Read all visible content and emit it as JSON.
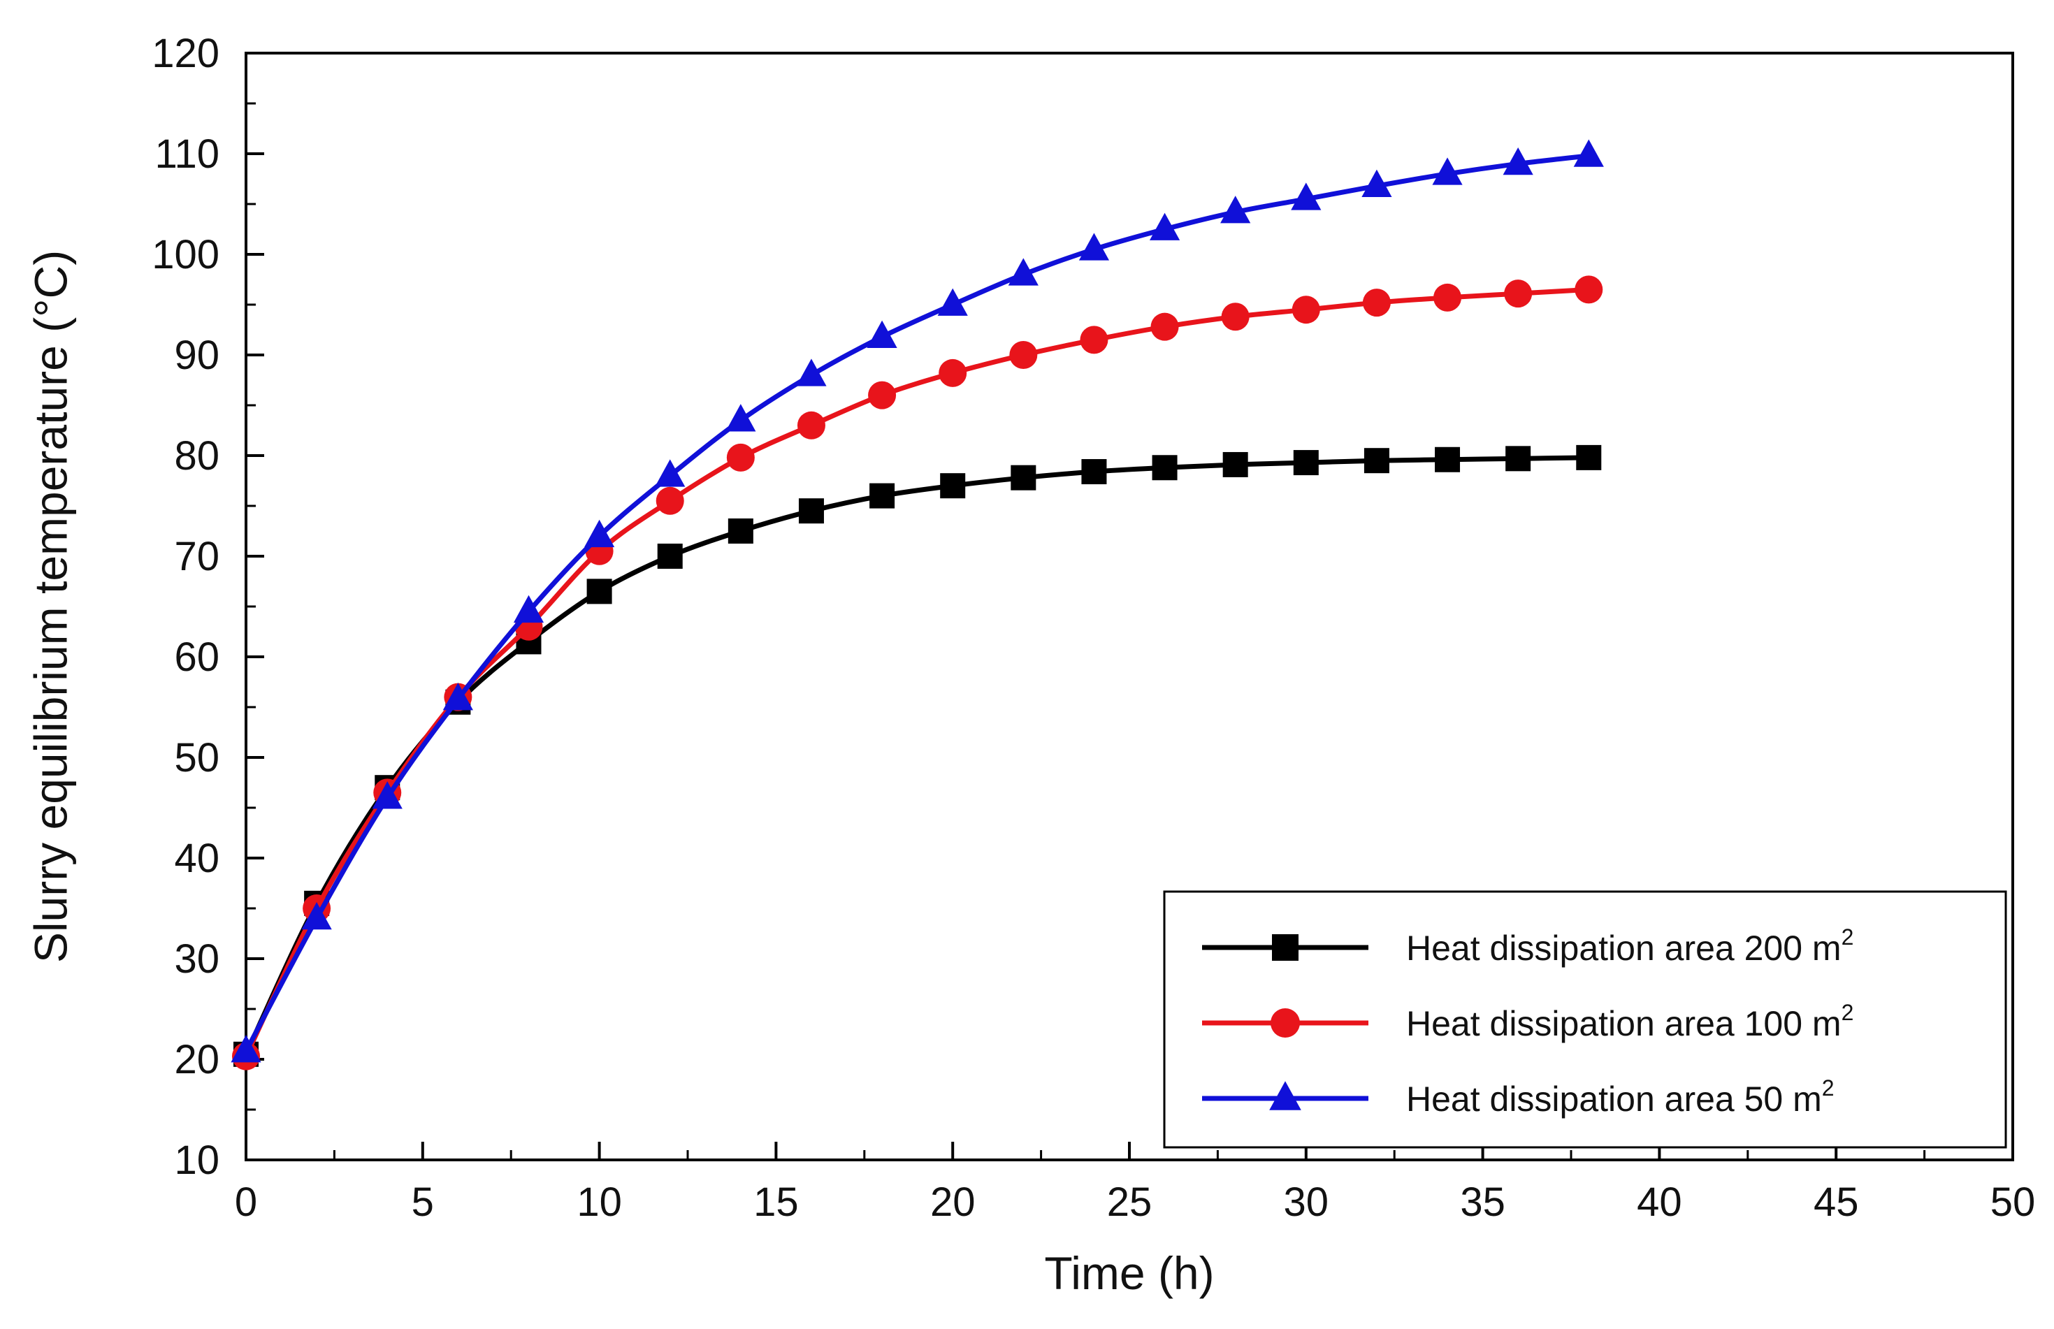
{
  "chart_data": {
    "type": "line",
    "title": "",
    "xlabel": "Time (h)",
    "ylabel": "Slurry equilibrium temperature (°C)",
    "xlim": [
      0,
      50
    ],
    "ylim": [
      10,
      120
    ],
    "xticks": [
      0,
      5,
      10,
      15,
      20,
      25,
      30,
      35,
      40,
      45,
      50
    ],
    "yticks": [
      10,
      20,
      30,
      40,
      50,
      60,
      70,
      80,
      90,
      100,
      110,
      120
    ],
    "grid": false,
    "legend_position": "bottom-right",
    "x": [
      0,
      2,
      4,
      6,
      8,
      10,
      12,
      14,
      16,
      18,
      20,
      22,
      24,
      26,
      28,
      30,
      32,
      34,
      36,
      38
    ],
    "series": [
      {
        "name": "Heat dissipation area 200 m",
        "name_sup": "2",
        "color": "#000000",
        "marker": "square",
        "values": [
          20.5,
          35.5,
          47,
          55.5,
          61.5,
          66.5,
          70,
          72.5,
          74.5,
          76,
          77,
          77.8,
          78.4,
          78.8,
          79.1,
          79.3,
          79.5,
          79.6,
          79.7,
          79.8
        ]
      },
      {
        "name": "Heat dissipation area 100 m",
        "name_sup": "2",
        "color": "#e8141b",
        "marker": "circle",
        "values": [
          20.3,
          35,
          46.5,
          56,
          63,
          70.5,
          75.5,
          79.8,
          83,
          86,
          88.2,
          90,
          91.5,
          92.8,
          93.8,
          94.5,
          95.2,
          95.7,
          96.1,
          96.5
        ]
      },
      {
        "name": "Heat dissipation area   50 m",
        "name_sup": "2",
        "color": "#1010d8",
        "marker": "triangle",
        "values": [
          20.8,
          34,
          46,
          55.8,
          64.5,
          72,
          78,
          83.5,
          88,
          91.8,
          95,
          98,
          100.5,
          102.5,
          104.2,
          105.5,
          106.8,
          108,
          109,
          109.8
        ]
      }
    ]
  }
}
